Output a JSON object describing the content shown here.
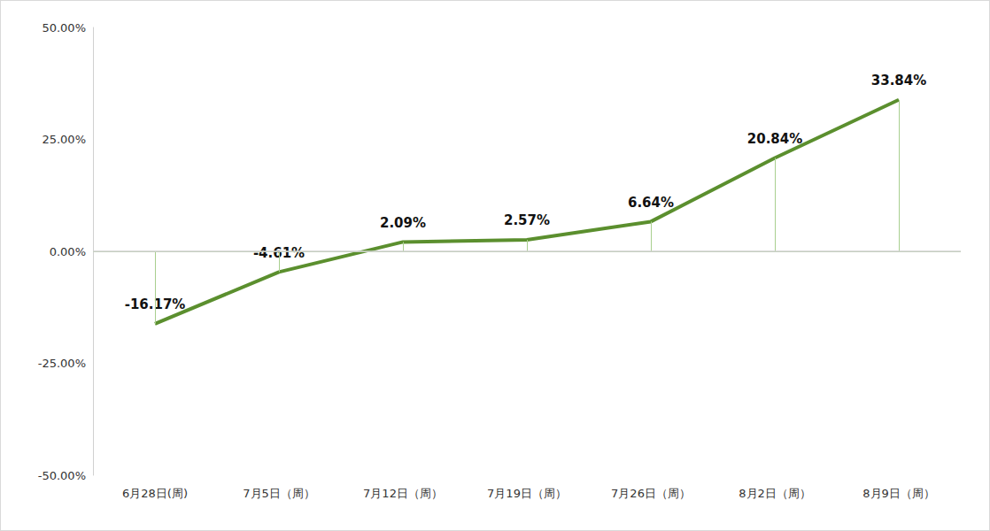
{
  "chart_data": {
    "type": "line",
    "categories": [
      "6月28日(周)",
      "7月5日（周）",
      "7月12日（周）",
      "7月19日（周）",
      "7月26日（周）",
      "8月2日（周）",
      "8月9日（周）"
    ],
    "values": [
      -16.17,
      -4.61,
      2.09,
      2.57,
      6.64,
      20.84,
      33.84
    ],
    "value_labels": [
      "-16.17%",
      "-4.61%",
      "2.09%",
      "2.57%",
      "6.64%",
      "20.84%",
      "33.84%"
    ],
    "color": "#5b8f2e",
    "ylim": [
      -50,
      50
    ],
    "yticks": [
      {
        "value": -50,
        "label": "-50.00%"
      },
      {
        "value": -25,
        "label": "-25.00%"
      },
      {
        "value": 0,
        "label": "0.00%"
      },
      {
        "value": 25,
        "label": "25.00%"
      },
      {
        "value": 50,
        "label": "50.00%"
      }
    ],
    "grid": false,
    "data_labels": true
  }
}
